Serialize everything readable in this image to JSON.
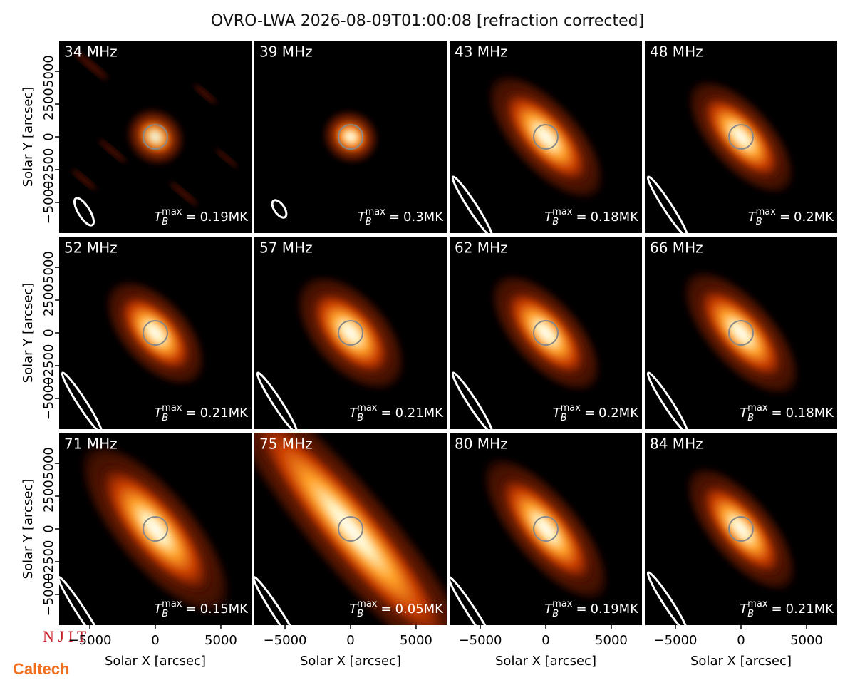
{
  "chart_data": {
    "type": "image-grid",
    "title": "OVRO-LWA 2026-08-09T01:00:08 [refraction corrected]",
    "xlabel": "Solar X [arcsec]",
    "ylabel": "Solar Y [arcsec]",
    "xlim": [
      -7340,
      7340
    ],
    "ylim": [
      -7340,
      7340
    ],
    "xticks": [
      {
        "value": -5000,
        "label": "−5000"
      },
      0,
      5000
    ],
    "yticks": [
      {
        "value": -5000,
        "label": "−5000"
      },
      {
        "value": -2500,
        "label": "−2500"
      },
      0,
      2500,
      5000
    ],
    "tb_symbol": "T",
    "tb_sub": "B",
    "tb_sup": "max",
    "tb_equals": "=",
    "panels": [
      {
        "frequency": "34 MHz",
        "tb_max": {
          "value": 0.19,
          "label": "0.19MK"
        }
      },
      {
        "frequency": "39 MHz",
        "tb_max": {
          "value": 0.3,
          "label": "0.3MK"
        }
      },
      {
        "frequency": "43 MHz",
        "tb_max": {
          "value": 0.18,
          "label": "0.18MK"
        }
      },
      {
        "frequency": "48 MHz",
        "tb_max": {
          "value": 0.2,
          "label": "0.2MK"
        }
      },
      {
        "frequency": "52 MHz",
        "tb_max": {
          "value": 0.21,
          "label": "0.21MK"
        }
      },
      {
        "frequency": "57 MHz",
        "tb_max": {
          "value": 0.21,
          "label": "0.21MK"
        }
      },
      {
        "frequency": "62 MHz",
        "tb_max": {
          "value": 0.2,
          "label": "0.2MK"
        }
      },
      {
        "frequency": "66 MHz",
        "tb_max": {
          "value": 0.18,
          "label": "0.18MK"
        }
      },
      {
        "frequency": "71 MHz",
        "tb_max": {
          "value": 0.15,
          "label": "0.15MK"
        }
      },
      {
        "frequency": "75 MHz",
        "tb_max": {
          "value": 0.05,
          "label": "0.05MK"
        }
      },
      {
        "frequency": "80 MHz",
        "tb_max": {
          "value": 0.19,
          "label": "0.19MK"
        }
      },
      {
        "frequency": "84 MHz",
        "tb_max": {
          "value": 0.21,
          "label": "0.21MK"
        }
      }
    ],
    "logos": [
      "N J I T",
      "Caltech"
    ]
  }
}
